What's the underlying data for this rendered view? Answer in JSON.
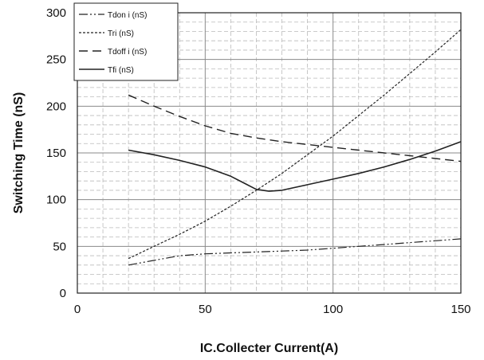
{
  "chart_data": {
    "type": "line",
    "xlabel": "IC.Collecter Current(A)",
    "ylabel": "Switching Time (nS)",
    "xlim": [
      0,
      150
    ],
    "ylim": [
      0,
      300
    ],
    "x_ticks": [
      0,
      50,
      100,
      150
    ],
    "y_ticks": [
      0,
      50,
      100,
      150,
      200,
      250,
      300
    ],
    "x_minor_step": 10,
    "y_minor_step": 10,
    "grid": true,
    "legend_position": "top-left",
    "series": [
      {
        "name": "Tdon i (nS)",
        "style": "dash-dot-dot",
        "x": [
          20,
          30,
          40,
          50,
          60,
          70,
          80,
          90,
          100,
          110,
          120,
          130,
          140,
          150
        ],
        "y": [
          30,
          35,
          40,
          42,
          43,
          44,
          45,
          46,
          48,
          50,
          52,
          54,
          56,
          58
        ]
      },
      {
        "name": "Tri (nS)",
        "style": "dotted",
        "x": [
          20,
          30,
          40,
          50,
          60,
          70,
          80,
          90,
          100,
          110,
          120,
          130,
          140,
          150
        ],
        "y": [
          37,
          50,
          63,
          77,
          93,
          110,
          128,
          148,
          168,
          190,
          212,
          235,
          258,
          282
        ]
      },
      {
        "name": "Tdoff i (nS)",
        "style": "dashed",
        "x": [
          20,
          30,
          40,
          50,
          60,
          70,
          80,
          90,
          100,
          110,
          120,
          130,
          140,
          150
        ],
        "y": [
          212,
          200,
          189,
          179,
          171,
          166,
          162,
          159,
          156,
          153,
          150,
          147,
          144,
          141
        ]
      },
      {
        "name": "Tfi (nS)",
        "style": "solid",
        "x": [
          20,
          30,
          40,
          50,
          60,
          65,
          70,
          75,
          80,
          90,
          100,
          110,
          120,
          130,
          140,
          150
        ],
        "y": [
          153,
          148,
          142,
          135,
          125,
          118,
          111,
          109,
          110,
          116,
          122,
          128,
          135,
          143,
          152,
          162
        ]
      }
    ]
  }
}
